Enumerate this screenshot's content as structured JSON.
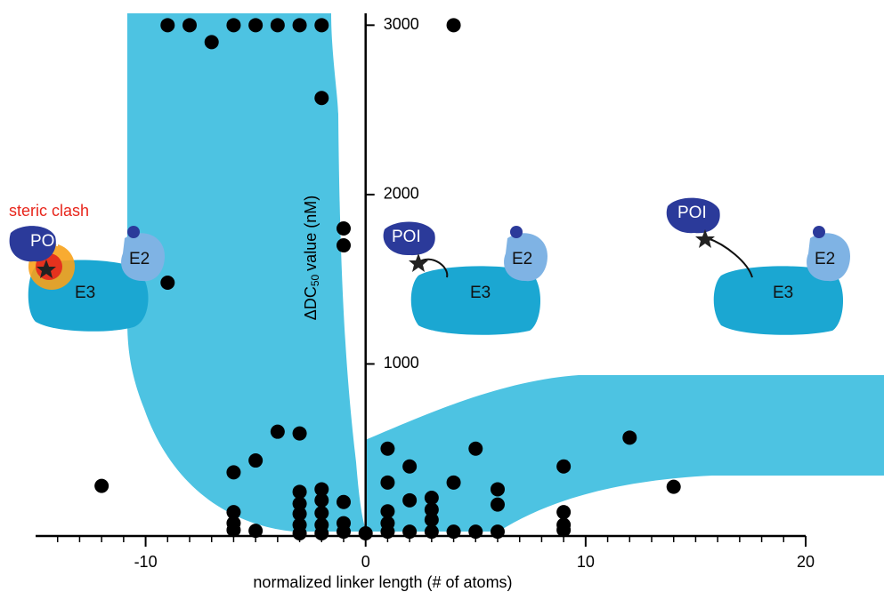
{
  "chart_data": {
    "type": "scatter",
    "x_label": "normalized linker length (# of atoms)",
    "y_label": "ΔDC",
    "y_label_subscript": "50",
    "y_label_suffix": "value (nM)",
    "color": "#000000",
    "xlim": [
      -15,
      20
    ],
    "xticks": [
      -10,
      0,
      10,
      20
    ],
    "xminorticks": [
      -14,
      -13,
      -12,
      -11,
      -9,
      -8,
      -7,
      -6,
      -5,
      -4,
      -3,
      -2,
      -1,
      1,
      2,
      3,
      4,
      5,
      6,
      7,
      8,
      9,
      11,
      12,
      13,
      14,
      15,
      16,
      17,
      18,
      19
    ],
    "ylim": [
      0,
      3070
    ],
    "yticks": [
      1000,
      2000,
      3000
    ],
    "x": [
      -12,
      -9,
      -8,
      -7,
      -6,
      -5,
      -4,
      -3,
      -2,
      -9,
      -2,
      -1,
      -1,
      -6,
      -5,
      -4,
      -3,
      -6,
      -6,
      -6,
      -5,
      -3,
      -3,
      -3,
      -3,
      -3,
      -2,
      -2,
      -2,
      -2,
      -2,
      -1,
      -1,
      -1,
      0,
      1,
      2,
      5,
      12,
      9,
      14,
      4,
      1,
      1,
      1,
      1,
      2,
      2,
      3,
      3,
      3,
      3,
      4,
      5,
      6,
      6,
      6,
      9,
      9,
      9,
      4
    ],
    "values": [
      280,
      3000,
      3000,
      2900,
      3000,
      3000,
      3000,
      3000,
      3000,
      1480,
      2570,
      1800,
      1700,
      360,
      430,
      600,
      590,
      125,
      60,
      20,
      15,
      245,
      175,
      115,
      50,
      0,
      260,
      195,
      120,
      50,
      0,
      185,
      60,
      10,
      0,
      500,
      395,
      500,
      565,
      395,
      275,
      300,
      300,
      130,
      60,
      10,
      195,
      10,
      210,
      140,
      80,
      10,
      10,
      10,
      260,
      170,
      10,
      125,
      50,
      20,
      3000
    ],
    "illustrations": [
      {
        "label": "steric clash",
        "poi": "POI",
        "e2": "E2",
        "e3": "E3"
      },
      {
        "poi": "POI",
        "e2": "E2",
        "e3": "E3"
      },
      {
        "poi": "POI",
        "e2": "E2",
        "e3": "E3"
      }
    ]
  }
}
